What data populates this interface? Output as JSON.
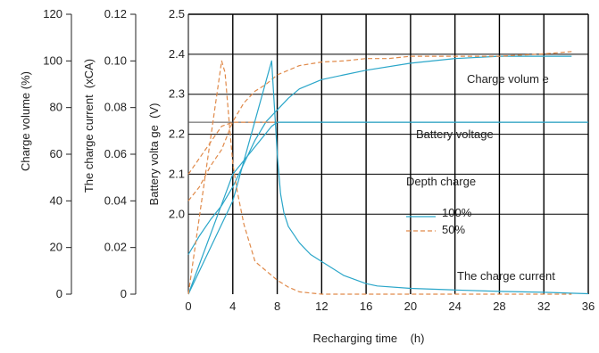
{
  "chart_data": {
    "type": "line",
    "title": "",
    "xlabel": "Recharging time    (h)",
    "xlim": [
      0,
      36
    ],
    "x_ticks": [
      0,
      4,
      8,
      12,
      16,
      20,
      24,
      28,
      32,
      36
    ],
    "grid": true,
    "axes": {
      "charge_volume": {
        "label": "Charge volume (%)",
        "range": [
          0,
          120
        ],
        "ticks": [
          "0",
          "20",
          "40",
          "60",
          "80",
          "100",
          "120"
        ]
      },
      "charge_current": {
        "label": "The charge current  (xCA)",
        "range": [
          0,
          0.12
        ],
        "ticks": [
          "0",
          "0.02",
          "0.04",
          "0.06",
          "0.08",
          "0.10",
          "0.12"
        ]
      },
      "battery_voltage": {
        "label": "Battery volta ge  (V)",
        "range": [
          1.8,
          2.5
        ],
        "ticks": [
          "2.0",
          "2.1",
          "2.2",
          "2.3",
          "2.4",
          "2.5"
        ]
      }
    },
    "annotations": {
      "charge_volume": "Charge volum e",
      "battery_voltage": "Battery voltage",
      "depth_charge": "Depth charge",
      "charge_current": "The charge current"
    },
    "legend": {
      "title": "Depth charge",
      "placement": "center-right",
      "items": [
        {
          "label": "100%",
          "style": "solid"
        },
        {
          "label": "50%",
          "style": "dashed"
        }
      ]
    },
    "colors": {
      "series_100": "#2aa6c9",
      "series_50": "#e08a4a",
      "grid": "#000000",
      "reference_line": "#555555"
    },
    "series": [
      {
        "name": "100%",
        "quantity": "charge volume",
        "axis": "charge_volume",
        "style": "solid",
        "x": [
          0,
          1,
          2,
          3,
          4,
          5,
          6,
          7,
          8,
          9,
          10,
          12,
          14,
          16,
          20,
          24,
          28,
          32,
          34.5
        ],
        "y": [
          17,
          25,
          32,
          38,
          46,
          56,
          66,
          74,
          79,
          84,
          88,
          92,
          94,
          96,
          99,
          101,
          102,
          102,
          102
        ]
      },
      {
        "name": "50%",
        "quantity": "charge volume",
        "axis": "charge_volume",
        "style": "dashed",
        "x": [
          0,
          1,
          2,
          3,
          4,
          5,
          6,
          7,
          8,
          9,
          10,
          12,
          14,
          16,
          18,
          20,
          24,
          28,
          32,
          34.5
        ],
        "y": [
          40,
          46,
          55,
          62,
          74,
          82,
          87,
          90,
          94,
          96,
          98,
          99.5,
          100,
          101,
          101,
          102,
          102,
          102,
          103,
          104
        ]
      },
      {
        "name": "100%",
        "quantity": "battery voltage",
        "axis": "battery_voltage",
        "style": "solid",
        "x": [
          0,
          4,
          7.5,
          8,
          36
        ],
        "y": [
          1.8,
          2.1,
          2.22,
          2.23,
          2.23
        ]
      },
      {
        "name": "50%",
        "quantity": "battery voltage",
        "axis": "battery_voltage",
        "style": "dashed",
        "x": [
          0,
          3,
          4,
          5,
          6,
          7.5,
          8
        ],
        "y": [
          2.1,
          2.22,
          2.23,
          2.23,
          2.23,
          2.23,
          2.23
        ]
      },
      {
        "name": "100%",
        "quantity": "charge current",
        "axis": "charge_current",
        "style": "solid",
        "x": [
          0,
          4,
          7.5,
          8,
          8.3,
          8.6,
          9,
          10,
          11,
          12,
          14,
          16,
          17,
          20,
          24,
          28,
          32,
          36
        ],
        "y": [
          0.0,
          0.04,
          0.1,
          0.06,
          0.043,
          0.035,
          0.029,
          0.022,
          0.017,
          0.014,
          0.008,
          0.0045,
          0.0035,
          0.0025,
          0.0018,
          0.0012,
          0.0008,
          0.0002
        ]
      },
      {
        "name": "50%",
        "quantity": "charge current",
        "axis": "charge_current",
        "style": "dashed",
        "x": [
          0,
          3,
          3.3,
          3.6,
          4,
          4.4,
          5,
          6,
          7,
          8,
          9,
          10,
          12,
          16,
          20,
          24,
          28,
          32,
          34.5
        ],
        "y": [
          0.0,
          0.1,
          0.095,
          0.078,
          0.056,
          0.044,
          0.03,
          0.014,
          0.01,
          0.006,
          0.003,
          0.001,
          0.0,
          0.0,
          0.0,
          0.0,
          0.0,
          0.0,
          0.0
        ]
      }
    ]
  }
}
